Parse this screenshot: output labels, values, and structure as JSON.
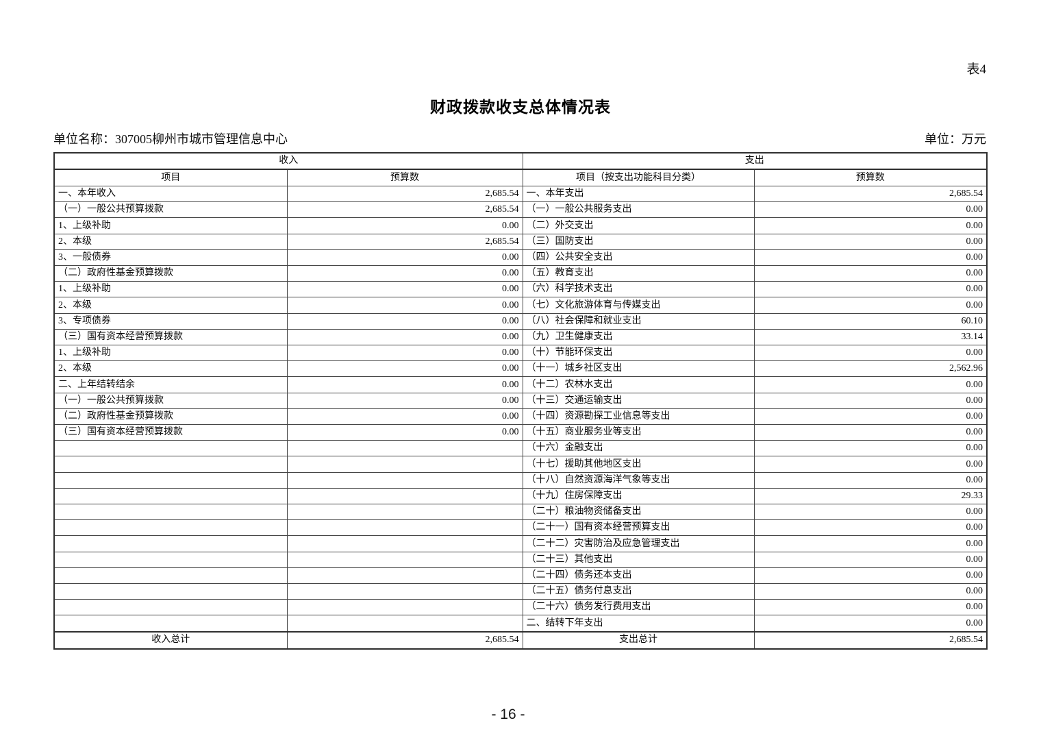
{
  "page": {
    "table_tag": "表4",
    "title": "财政拨款收支总体情况表",
    "unit_name": "单位名称：307005柳州市城市管理信息中心",
    "unit_label": "单位：万元",
    "page_number": "- 16 -"
  },
  "table": {
    "group_headers": {
      "revenue": "收入",
      "expenditure": "支出"
    },
    "column_headers": {
      "revenue_item": "项目",
      "revenue_budget": "预算数",
      "expenditure_item": "项目（按支出功能科目分类）",
      "expenditure_budget": "预算数"
    },
    "rows": [
      {
        "li": "一、本年收入",
        "ll": 1,
        "lv": "2,685.54",
        "ri": "一、本年支出",
        "rl": 1,
        "rv": "2,685.54"
      },
      {
        "li": "（一）一般公共预算拨款",
        "ll": 2,
        "lv": "2,685.54",
        "ri": "（一）一般公共服务支出",
        "rl": 2,
        "rv": "0.00"
      },
      {
        "li": "1、上级补助",
        "ll": 3,
        "lv": "0.00",
        "ri": "（二）外交支出",
        "rl": 2,
        "rv": "0.00"
      },
      {
        "li": "2、本级",
        "ll": 3,
        "lv": "2,685.54",
        "ri": "（三）国防支出",
        "rl": 2,
        "rv": "0.00"
      },
      {
        "li": "3、一般债券",
        "ll": 3,
        "lv": "0.00",
        "ri": "（四）公共安全支出",
        "rl": 2,
        "rv": "0.00"
      },
      {
        "li": "（二）政府性基金预算拨款",
        "ll": 2,
        "lv": "0.00",
        "ri": "（五）教育支出",
        "rl": 2,
        "rv": "0.00"
      },
      {
        "li": "1、上级补助",
        "ll": 3,
        "lv": "0.00",
        "ri": "（六）科学技术支出",
        "rl": 2,
        "rv": "0.00"
      },
      {
        "li": "2、本级",
        "ll": 3,
        "lv": "0.00",
        "ri": "（七）文化旅游体育与传媒支出",
        "rl": 2,
        "rv": "0.00"
      },
      {
        "li": "3、专项债券",
        "ll": 3,
        "lv": "0.00",
        "ri": "（八）社会保障和就业支出",
        "rl": 2,
        "rv": "60.10"
      },
      {
        "li": "（三）国有资本经营预算拨款",
        "ll": 2,
        "lv": "0.00",
        "ri": "（九）卫生健康支出",
        "rl": 2,
        "rv": "33.14"
      },
      {
        "li": "1、上级补助",
        "ll": 3,
        "lv": "0.00",
        "ri": "（十）节能环保支出",
        "rl": 2,
        "rv": "0.00"
      },
      {
        "li": "2、本级",
        "ll": 3,
        "lv": "0.00",
        "ri": "（十一）城乡社区支出",
        "rl": 2,
        "rv": "2,562.96"
      },
      {
        "li": "二、上年结转结余",
        "ll": 1,
        "lv": "0.00",
        "ri": "（十二）农林水支出",
        "rl": 2,
        "rv": "0.00"
      },
      {
        "li": "（一）一般公共预算拨款",
        "ll": 2,
        "lv": "0.00",
        "ri": "（十三）交通运输支出",
        "rl": 2,
        "rv": "0.00"
      },
      {
        "li": "（二）政府性基金预算拨款",
        "ll": 2,
        "lv": "0.00",
        "ri": "（十四）资源勘探工业信息等支出",
        "rl": 2,
        "rv": "0.00"
      },
      {
        "li": "（三）国有资本经营预算拨款",
        "ll": 2,
        "lv": "0.00",
        "ri": "（十五）商业服务业等支出",
        "rl": 2,
        "rv": "0.00"
      },
      {
        "li": "",
        "ll": 0,
        "lv": "",
        "ri": "（十六）金融支出",
        "rl": 2,
        "rv": "0.00"
      },
      {
        "li": "",
        "ll": 0,
        "lv": "",
        "ri": "（十七）援助其他地区支出",
        "rl": 2,
        "rv": "0.00"
      },
      {
        "li": "",
        "ll": 0,
        "lv": "",
        "ri": "（十八）自然资源海洋气象等支出",
        "rl": 2,
        "rv": "0.00"
      },
      {
        "li": "",
        "ll": 0,
        "lv": "",
        "ri": "（十九）住房保障支出",
        "rl": 2,
        "rv": "29.33"
      },
      {
        "li": "",
        "ll": 0,
        "lv": "",
        "ri": "（二十）粮油物资储备支出",
        "rl": 2,
        "rv": "0.00"
      },
      {
        "li": "",
        "ll": 0,
        "lv": "",
        "ri": "（二十一）国有资本经营预算支出",
        "rl": 2,
        "rv": "0.00"
      },
      {
        "li": "",
        "ll": 0,
        "lv": "",
        "ri": "（二十二）灾害防治及应急管理支出",
        "rl": 2,
        "rv": "0.00"
      },
      {
        "li": "",
        "ll": 0,
        "lv": "",
        "ri": "（二十三）其他支出",
        "rl": 2,
        "rv": "0.00"
      },
      {
        "li": "",
        "ll": 0,
        "lv": "",
        "ri": "（二十四）债务还本支出",
        "rl": 2,
        "rv": "0.00"
      },
      {
        "li": "",
        "ll": 0,
        "lv": "",
        "ri": "（二十五）债务付息支出",
        "rl": 2,
        "rv": "0.00"
      },
      {
        "li": "",
        "ll": 0,
        "lv": "",
        "ri": "（二十六）债务发行费用支出",
        "rl": 2,
        "rv": "0.00"
      },
      {
        "li": "",
        "ll": 0,
        "lv": "",
        "ri": "二、结转下年支出",
        "rl": 1,
        "rv": "0.00"
      }
    ],
    "totals": {
      "revenue_label": "收入总计",
      "revenue_value": "2,685.54",
      "expenditure_label": "支出总计",
      "expenditure_value": "2,685.54"
    }
  }
}
